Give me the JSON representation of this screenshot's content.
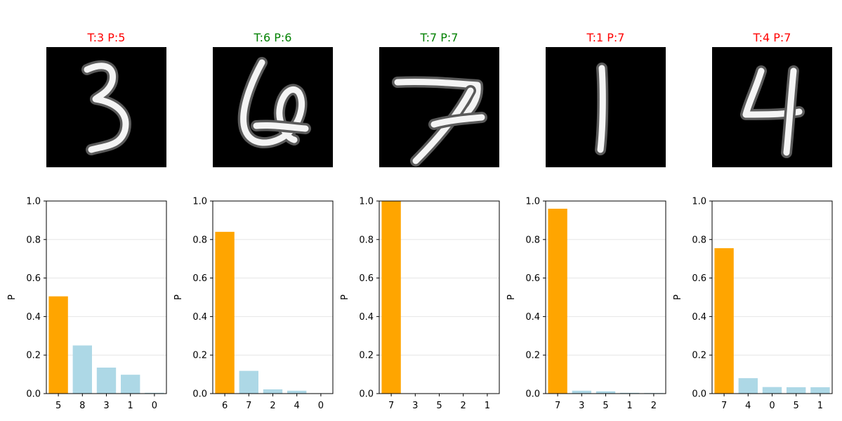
{
  "colors": {
    "highlight_bar": "#FFA500",
    "other_bar": "#ADD8E6",
    "correct_title": "#008000",
    "wrong_title": "#FF0000",
    "image_bg": "#000000",
    "grid": "#e6e6e6"
  },
  "chart_data": [
    {
      "type": "bar",
      "title": "T:3  P:5",
      "title_color": "#FF0000",
      "digit": "3",
      "categories": [
        "5",
        "8",
        "3",
        "1",
        "0"
      ],
      "values": [
        0.505,
        0.25,
        0.135,
        0.098,
        0.004
      ],
      "ylabel": "P",
      "ylim": [
        0,
        1.0
      ],
      "yticks": [
        "0.0",
        "0.2",
        "0.4",
        "0.6",
        "0.8",
        "1.0"
      ],
      "grid": "y"
    },
    {
      "type": "bar",
      "title": "T:6  P:6",
      "title_color": "#008000",
      "digit": "6",
      "categories": [
        "6",
        "7",
        "2",
        "4",
        "0"
      ],
      "values": [
        0.84,
        0.118,
        0.022,
        0.015,
        0.002
      ],
      "ylabel": "P",
      "ylim": [
        0,
        1.0
      ],
      "yticks": [
        "0.0",
        "0.2",
        "0.4",
        "0.6",
        "0.8",
        "1.0"
      ],
      "grid": "y"
    },
    {
      "type": "bar",
      "title": "T:7  P:7",
      "title_color": "#008000",
      "digit": "7",
      "categories": [
        "7",
        "3",
        "5",
        "2",
        "1"
      ],
      "values": [
        1.0,
        0.001,
        0.001,
        0.001,
        0.0005
      ],
      "ylabel": "P",
      "ylim": [
        0,
        1.0
      ],
      "yticks": [
        "0.0",
        "0.2",
        "0.4",
        "0.6",
        "0.8",
        "1.0"
      ],
      "grid": "y"
    },
    {
      "type": "bar",
      "title": "T:1  P:7",
      "title_color": "#FF0000",
      "digit": "1",
      "categories": [
        "7",
        "3",
        "5",
        "1",
        "2"
      ],
      "values": [
        0.96,
        0.015,
        0.012,
        0.004,
        0.003
      ],
      "ylabel": "P",
      "ylim": [
        0,
        1.0
      ],
      "yticks": [
        "0.0",
        "0.2",
        "0.4",
        "0.6",
        "0.8",
        "1.0"
      ],
      "grid": "y"
    },
    {
      "type": "bar",
      "title": "T:4  P:7",
      "title_color": "#FF0000",
      "digit": "4",
      "categories": [
        "7",
        "4",
        "0",
        "5",
        "1"
      ],
      "values": [
        0.755,
        0.08,
        0.034,
        0.033,
        0.033
      ],
      "ylabel": "P",
      "ylim": [
        0,
        1.0
      ],
      "yticks": [
        "0.0",
        "0.2",
        "0.4",
        "0.6",
        "0.8",
        "1.0"
      ],
      "grid": "y"
    }
  ]
}
